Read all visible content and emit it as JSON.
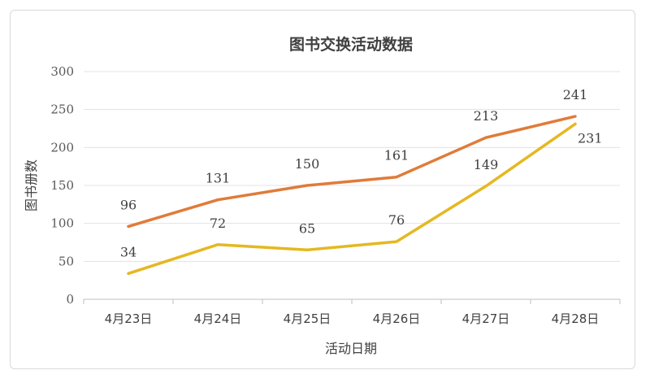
{
  "chart_data": {
    "type": "line",
    "title": "图书交换活动数据",
    "xlabel": "活动日期",
    "ylabel": "图书册数",
    "categories": [
      "4月23日",
      "4月24日",
      "4月25日",
      "4月26日",
      "4月27日",
      "4月28日"
    ],
    "ylim": [
      0,
      300
    ],
    "yticks": [
      0,
      50,
      100,
      150,
      200,
      250,
      300
    ],
    "grid": true,
    "legend": "none",
    "series": [
      {
        "values": [
          96,
          131,
          150,
          161,
          213,
          241
        ],
        "color": "#E07B39"
      },
      {
        "values": [
          34,
          72,
          65,
          76,
          149,
          231
        ],
        "color": "#E5B821"
      }
    ]
  }
}
